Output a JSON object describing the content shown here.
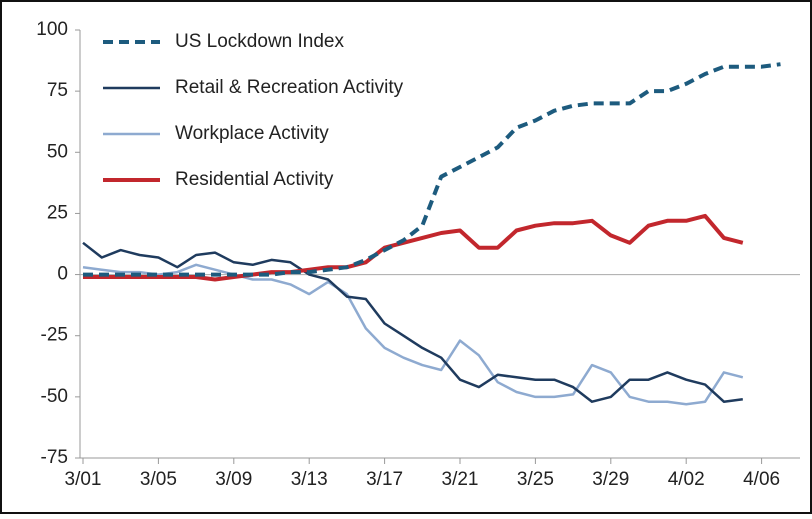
{
  "chart_data": {
    "type": "line",
    "categories": [
      "3/01",
      null,
      null,
      null,
      "3/05",
      null,
      null,
      null,
      "3/09",
      null,
      null,
      null,
      "3/13",
      null,
      null,
      null,
      "3/17",
      null,
      null,
      null,
      "3/21",
      null,
      null,
      null,
      "3/25",
      null,
      null,
      null,
      "3/29",
      null,
      null,
      null,
      "4/02",
      null,
      null,
      null,
      "4/06",
      null
    ],
    "ylim": [
      -75,
      100
    ],
    "yticks": [
      -75,
      -50,
      -25,
      0,
      25,
      50,
      75,
      100
    ],
    "zero_line": true,
    "legend": "top-left",
    "series": [
      {
        "name": "US Lockdown Index",
        "color": "#1d5b7e",
        "dashed": true,
        "values": [
          0,
          0,
          0,
          0,
          0,
          0,
          0,
          0,
          0,
          0,
          0,
          1,
          1,
          2,
          3,
          6,
          10,
          14,
          20,
          40,
          44,
          48,
          52,
          60,
          63,
          67,
          69,
          70,
          70,
          70,
          75,
          75,
          78,
          82,
          85,
          85,
          85,
          86
        ]
      },
      {
        "name": "Retail & Recreation Activity",
        "color": "#1f3b5e",
        "dashed": false,
        "values": [
          13,
          7,
          10,
          8,
          7,
          3,
          8,
          9,
          5,
          4,
          6,
          5,
          0,
          -2,
          -9,
          -10,
          -20,
          -25,
          -30,
          -34,
          -43,
          -46,
          -41,
          -42,
          -43,
          -43,
          -46,
          -52,
          -50,
          -43,
          -43,
          -40,
          -43,
          -45,
          -52,
          -51,
          null,
          null
        ]
      },
      {
        "name": "Workplace Activity",
        "color": "#8eaad0",
        "dashed": false,
        "values": [
          3,
          2,
          1,
          1,
          0,
          1,
          4,
          2,
          0,
          -2,
          -2,
          -4,
          -8,
          -3,
          -8,
          -22,
          -30,
          -34,
          -37,
          -39,
          -27,
          -33,
          -44,
          -48,
          -50,
          -50,
          -49,
          -37,
          -40,
          -50,
          -52,
          -52,
          -53,
          -52,
          -40,
          -42,
          null,
          null
        ]
      },
      {
        "name": "Residential Activity",
        "color": "#c2272d",
        "dashed": false,
        "values": [
          -1,
          -1,
          -1,
          -1,
          -1,
          -1,
          -1,
          -2,
          -1,
          0,
          1,
          1,
          2,
          3,
          3,
          5,
          11,
          13,
          15,
          17,
          18,
          11,
          11,
          18,
          20,
          21,
          21,
          22,
          16,
          13,
          20,
          22,
          22,
          24,
          15,
          13,
          null,
          null
        ]
      }
    ]
  }
}
